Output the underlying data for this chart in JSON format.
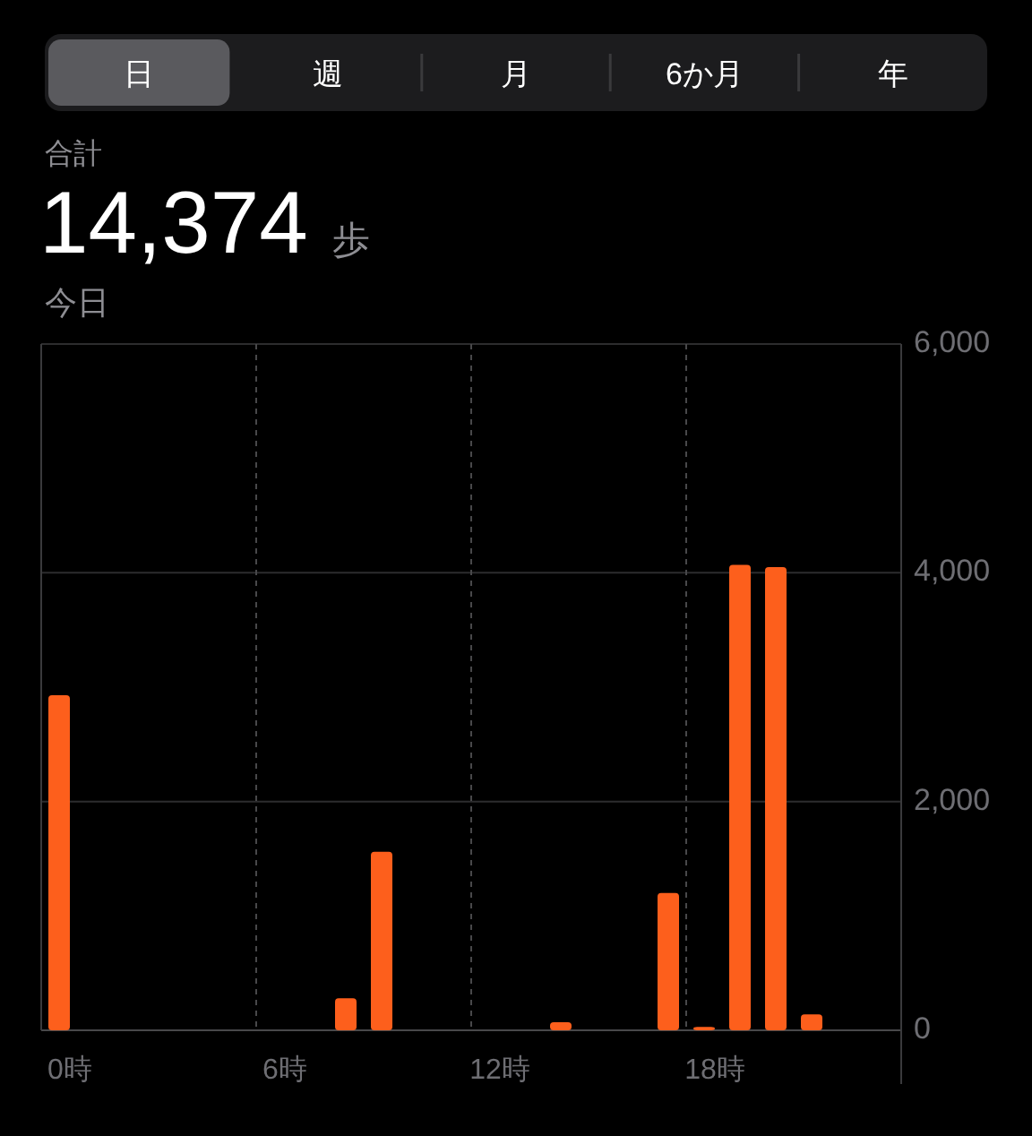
{
  "chart_data": {
    "type": "bar",
    "title": "14,374 歩",
    "subtitle": "今日",
    "annotations": [
      "日",
      "週",
      "月",
      "6か月",
      "年",
      "合計"
    ],
    "categories": [
      "0時",
      null,
      null,
      null,
      null,
      null,
      "6時",
      null,
      null,
      null,
      null,
      null,
      "12時",
      null,
      null,
      null,
      null,
      null,
      "18時",
      null,
      null,
      null,
      null,
      null
    ],
    "values": [
      2930,
      null,
      null,
      null,
      null,
      null,
      null,
      null,
      280,
      1560,
      null,
      null,
      null,
      null,
      70,
      null,
      null,
      1200,
      30,
      4070,
      4050,
      140,
      null,
      null
    ],
    "color": "#fd5f1c",
    "ylim": [
      0,
      6000
    ],
    "yticks": [
      0,
      {
        "value": 2000,
        "label": "2,000"
      },
      {
        "value": 4000,
        "label": "4,000"
      },
      {
        "value": 6000,
        "label": "6,000"
      }
    ],
    "grid": true
  }
}
